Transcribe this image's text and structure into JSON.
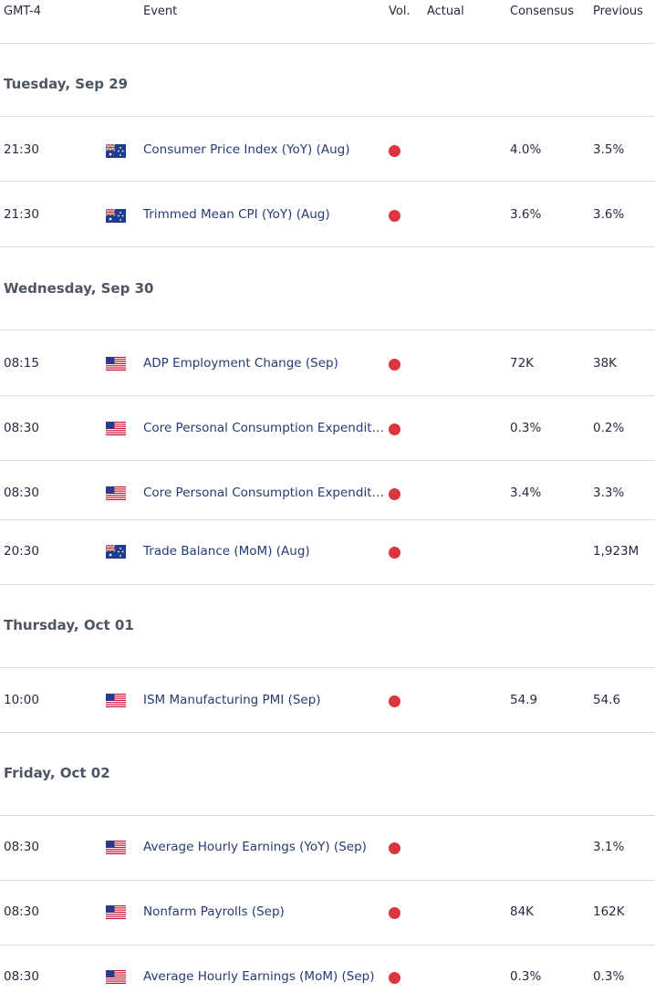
{
  "header": {
    "timezone": "GMT-4",
    "event": "Event",
    "vol": "Vol.",
    "actual": "Actual",
    "consensus": "Consensus",
    "previous": "Previous"
  },
  "colors": {
    "volatility_high": "#d9363e",
    "event_text": "#243b73",
    "divider": "#dadde2"
  },
  "days": [
    {
      "label": "Tuesday, Sep 29",
      "events": [
        {
          "time": "21:30",
          "flag": "australia-flag-icon",
          "event": "Consumer Price Index (YoY) (Aug)",
          "actual": "",
          "consensus": "4.0%",
          "previous": "3.5%"
        },
        {
          "time": "21:30",
          "flag": "australia-flag-icon",
          "event": "Trimmed Mean CPI (YoY) (Aug)",
          "actual": "",
          "consensus": "3.6%",
          "previous": "3.6%"
        }
      ]
    },
    {
      "label": "Wednesday, Sep 30",
      "events": [
        {
          "time": "08:15",
          "flag": "usa-flag-icon",
          "event": "ADP Employment Change (Sep)",
          "actual": "",
          "consensus": "72K",
          "previous": "38K"
        },
        {
          "time": "08:30",
          "flag": "usa-flag-icon",
          "event": "Core Personal Consumption Expenditures",
          "actual": "",
          "consensus": "0.3%",
          "previous": "0.2%"
        },
        {
          "time": "08:30",
          "flag": "usa-flag-icon",
          "event": "Core Personal Consumption Expenditures",
          "actual": "",
          "consensus": "3.4%",
          "previous": "3.3%"
        },
        {
          "time": "20:30",
          "flag": "australia-flag-icon",
          "event": "Trade Balance (MoM) (Aug)",
          "actual": "",
          "consensus": "",
          "previous": "1,923M"
        }
      ]
    },
    {
      "label": "Thursday, Oct 01",
      "events": [
        {
          "time": "10:00",
          "flag": "usa-flag-icon",
          "event": "ISM Manufacturing PMI (Sep)",
          "actual": "",
          "consensus": "54.9",
          "previous": "54.6"
        }
      ]
    },
    {
      "label": "Friday, Oct 02",
      "events": [
        {
          "time": "08:30",
          "flag": "usa-flag-icon",
          "event": "Average Hourly Earnings (YoY) (Sep)",
          "actual": "",
          "consensus": "",
          "previous": "3.1%"
        },
        {
          "time": "08:30",
          "flag": "usa-flag-icon",
          "event": "Nonfarm Payrolls (Sep)",
          "actual": "",
          "consensus": "84K",
          "previous": "162K"
        },
        {
          "time": "08:30",
          "flag": "usa-flag-icon",
          "event": "Average Hourly Earnings (MoM) (Sep)",
          "actual": "",
          "consensus": "0.3%",
          "previous": "0.3%"
        }
      ]
    }
  ]
}
